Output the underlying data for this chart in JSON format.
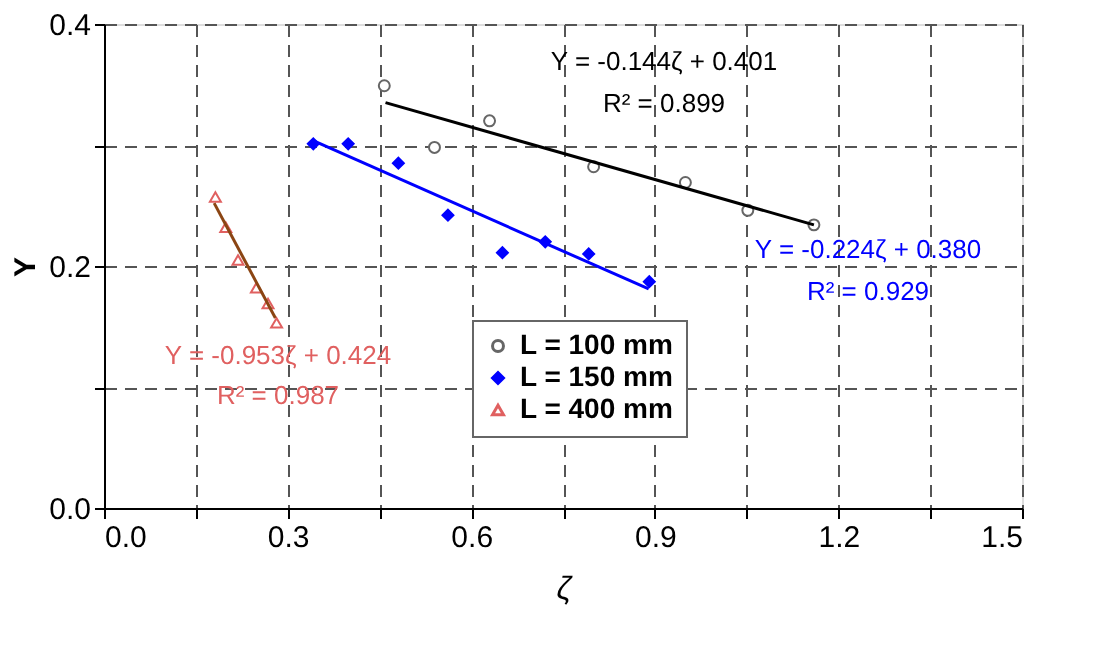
{
  "chart_data": {
    "type": "scatter",
    "xlabel": "ζ",
    "ylabel": "Y",
    "xlim": [
      0,
      1.5
    ],
    "ylim": [
      0,
      0.4
    ],
    "xticks": [
      {
        "value": 0,
        "label": "0.0"
      },
      {
        "value": 0.15,
        "label": null
      },
      0.3,
      {
        "value": 0.45,
        "label": null
      },
      0.6,
      {
        "value": 0.75,
        "label": null
      },
      0.9,
      {
        "value": 1.05,
        "label": null
      },
      1.2,
      {
        "value": 1.35,
        "label": null
      },
      1.5
    ],
    "yticks": [
      {
        "value": 0,
        "label": "0.0"
      },
      {
        "value": 0.1,
        "label": null
      },
      0.2,
      {
        "value": 0.3,
        "label": null
      },
      0.4
    ],
    "grid": true,
    "legend": "bottom",
    "series": [
      {
        "name": "L = 100 mm",
        "color": "#666666",
        "marker": "circle",
        "x": [
          0.458,
          0.63,
          0.54,
          0.8,
          0.95,
          1.052,
          1.16
        ],
        "values": [
          0.349,
          0.32,
          0.298,
          0.282,
          0.269,
          0.246,
          0.234
        ]
      },
      {
        "name": "L = 150 mm",
        "color": "#0000ff",
        "marker": "diamond",
        "x": [
          0.342,
          0.399,
          0.481,
          0.562,
          0.651,
          0.721,
          0.792,
          0.891
        ],
        "values": [
          0.301,
          0.301,
          0.285,
          0.242,
          0.211,
          0.22,
          0.21,
          0.187
        ]
      },
      {
        "name": "L = 400 mm",
        "color": "#e06060",
        "marker": "triangle",
        "x": [
          0.182,
          0.199,
          0.219,
          0.249,
          0.268,
          0.282
        ],
        "values": [
          0.257,
          0.232,
          0.205,
          0.182,
          0.169,
          0.153
        ]
      },
      {
        "type": "line",
        "color": "#000000",
        "x": [
          0.46,
          1.16
        ],
        "values": [
          0.335,
          0.234
        ]
      },
      {
        "type": "line",
        "color": "#0000ff",
        "x": [
          0.34,
          0.89
        ],
        "values": [
          0.304,
          0.181
        ]
      },
      {
        "type": "line",
        "color": "#8b4513",
        "x": [
          0.18,
          0.28
        ],
        "values": [
          0.252,
          0.157
        ]
      }
    ],
    "annotations": [
      "Y = -0.144ζ + 0.401",
      "R² = 0.899",
      "Y = -0.224ζ + 0.380",
      "R² = 0.929",
      "Y = -0.953ζ + 0.424",
      "R² = 0.987"
    ]
  }
}
